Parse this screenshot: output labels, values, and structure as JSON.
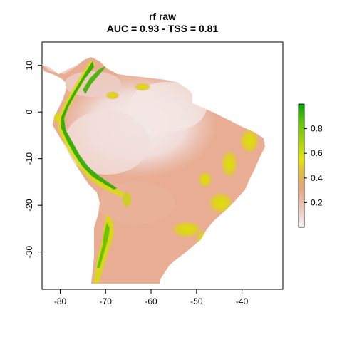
{
  "chart_data": {
    "type": "heatmap",
    "title": "rf raw",
    "subtitle": "AUC = 0.93 - TSS = 0.81",
    "xlabel": "",
    "ylabel": "",
    "xlim": [
      -84,
      -31
    ],
    "ylim": [
      -38,
      15
    ],
    "x_ticks": [
      {
        "value": -80,
        "label": "-80"
      },
      {
        "value": -70,
        "label": "-70"
      },
      {
        "value": -60,
        "label": "-60"
      },
      {
        "value": -50,
        "label": "-50"
      },
      {
        "value": -40,
        "label": "-40"
      }
    ],
    "y_ticks": [
      {
        "value": 10,
        "label": "10"
      },
      {
        "value": 0,
        "label": "0"
      },
      {
        "value": -10,
        "label": "-10"
      },
      {
        "value": -20,
        "label": "-20"
      },
      {
        "value": -30,
        "label": "-30"
      }
    ],
    "colorbar": {
      "range": [
        0.0,
        1.0
      ],
      "ticks": [
        {
          "value": 0.2,
          "label": "0.2"
        },
        {
          "value": 0.4,
          "label": "0.4"
        },
        {
          "value": 0.6,
          "label": "0.6"
        },
        {
          "value": 0.8,
          "label": "0.8"
        }
      ],
      "colors": [
        "#f2f2f2",
        "#eabfb3",
        "#e6a377",
        "#e0bb3a",
        "#e6e600",
        "#a3d300",
        "#63c600",
        "#00a600"
      ]
    },
    "colors": {
      "land_base": "#e8ad92",
      "land_low": "#f0e0de",
      "mid": "#e2c04a",
      "high": "#d8dd10",
      "top": "#1ea800"
    }
  }
}
